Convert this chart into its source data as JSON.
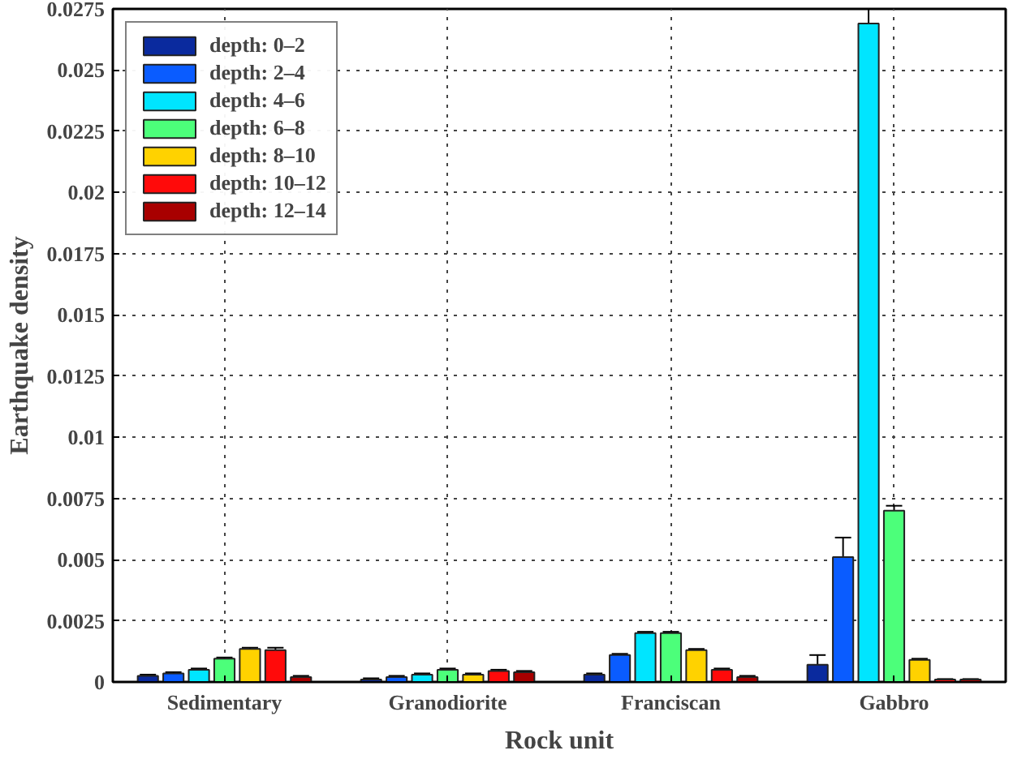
{
  "chart_data": {
    "type": "bar",
    "xlabel": "Rock unit",
    "ylabel": "Earthquake density",
    "categories": [
      "Sedimentary",
      "Granodiorite",
      "Franciscan",
      "Gabbro"
    ],
    "ylim": [
      0,
      0.0275
    ],
    "yticks": [
      0,
      0.0025,
      0.005,
      0.0075,
      0.01,
      0.0125,
      0.015,
      0.0175,
      0.02,
      0.0225,
      0.025,
      0.0275
    ],
    "grid": true,
    "legend": "top left",
    "series": [
      {
        "name": "depth: 0–2",
        "color": "#0a2a9e",
        "values": [
          0.00025,
          0.0001,
          0.0003,
          0.0007
        ],
        "errors": [
          5e-05,
          5e-05,
          5e-05,
          0.0004
        ]
      },
      {
        "name": "depth: 2–4",
        "color": "#0a5cff",
        "values": [
          0.00035,
          0.0002,
          0.0011,
          0.0051
        ],
        "errors": [
          5e-05,
          5e-05,
          5e-05,
          0.0008
        ]
      },
      {
        "name": "depth: 4–6",
        "color": "#00e5ff",
        "values": [
          0.0005,
          0.0003,
          0.002,
          0.0269
        ],
        "errors": [
          5e-05,
          5e-05,
          5e-05,
          0.0006
        ]
      },
      {
        "name": "depth: 6–8",
        "color": "#4cff7a",
        "values": [
          0.00095,
          0.0005,
          0.002,
          0.007
        ],
        "errors": [
          5e-05,
          5e-05,
          5e-05,
          0.0002
        ]
      },
      {
        "name": "depth: 8–10",
        "color": "#ffd200",
        "values": [
          0.00135,
          0.0003,
          0.0013,
          0.0009
        ],
        "errors": [
          5e-05,
          5e-05,
          5e-05,
          5e-05
        ]
      },
      {
        "name": "depth: 10–12",
        "color": "#ff0a0a",
        "values": [
          0.0013,
          0.00045,
          0.0005,
          0.0001
        ],
        "errors": [
          0.0001,
          5e-05,
          5e-05,
          2e-05
        ]
      },
      {
        "name": "depth: 12–14",
        "color": "#a80000",
        "values": [
          0.0002,
          0.0004,
          0.0002,
          0.0001
        ],
        "errors": [
          5e-05,
          5e-05,
          5e-05,
          2e-05
        ]
      }
    ]
  }
}
